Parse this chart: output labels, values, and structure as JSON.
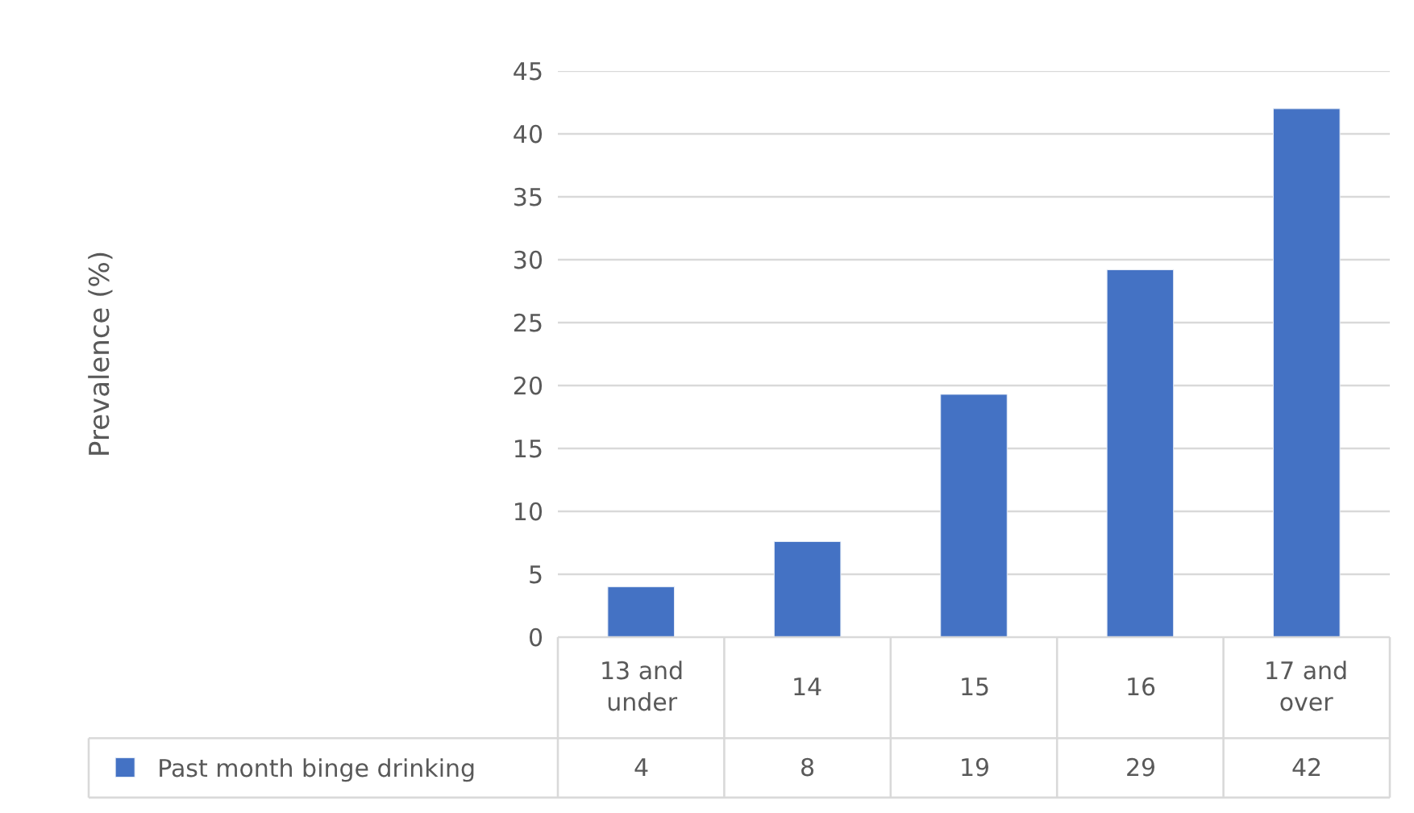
{
  "chart_data": {
    "type": "bar",
    "annotations": [
      "Prevalence (%)"
    ],
    "categories": [
      "13 and under",
      "14",
      "15",
      "16",
      "17 and over"
    ],
    "series": [
      {
        "name": "Past month binge drinking",
        "color": "#4472c4",
        "values": [
          4.0,
          7.6,
          19.3,
          29.2,
          42.0
        ],
        "value_labels": [
          "4",
          "8",
          "19",
          "29",
          "42"
        ]
      }
    ],
    "ylim": [
      0,
      45
    ],
    "yticks": [
      0,
      5,
      10,
      15,
      20,
      25,
      30,
      35,
      40,
      45
    ],
    "grid": "y",
    "legend": "bottom"
  }
}
